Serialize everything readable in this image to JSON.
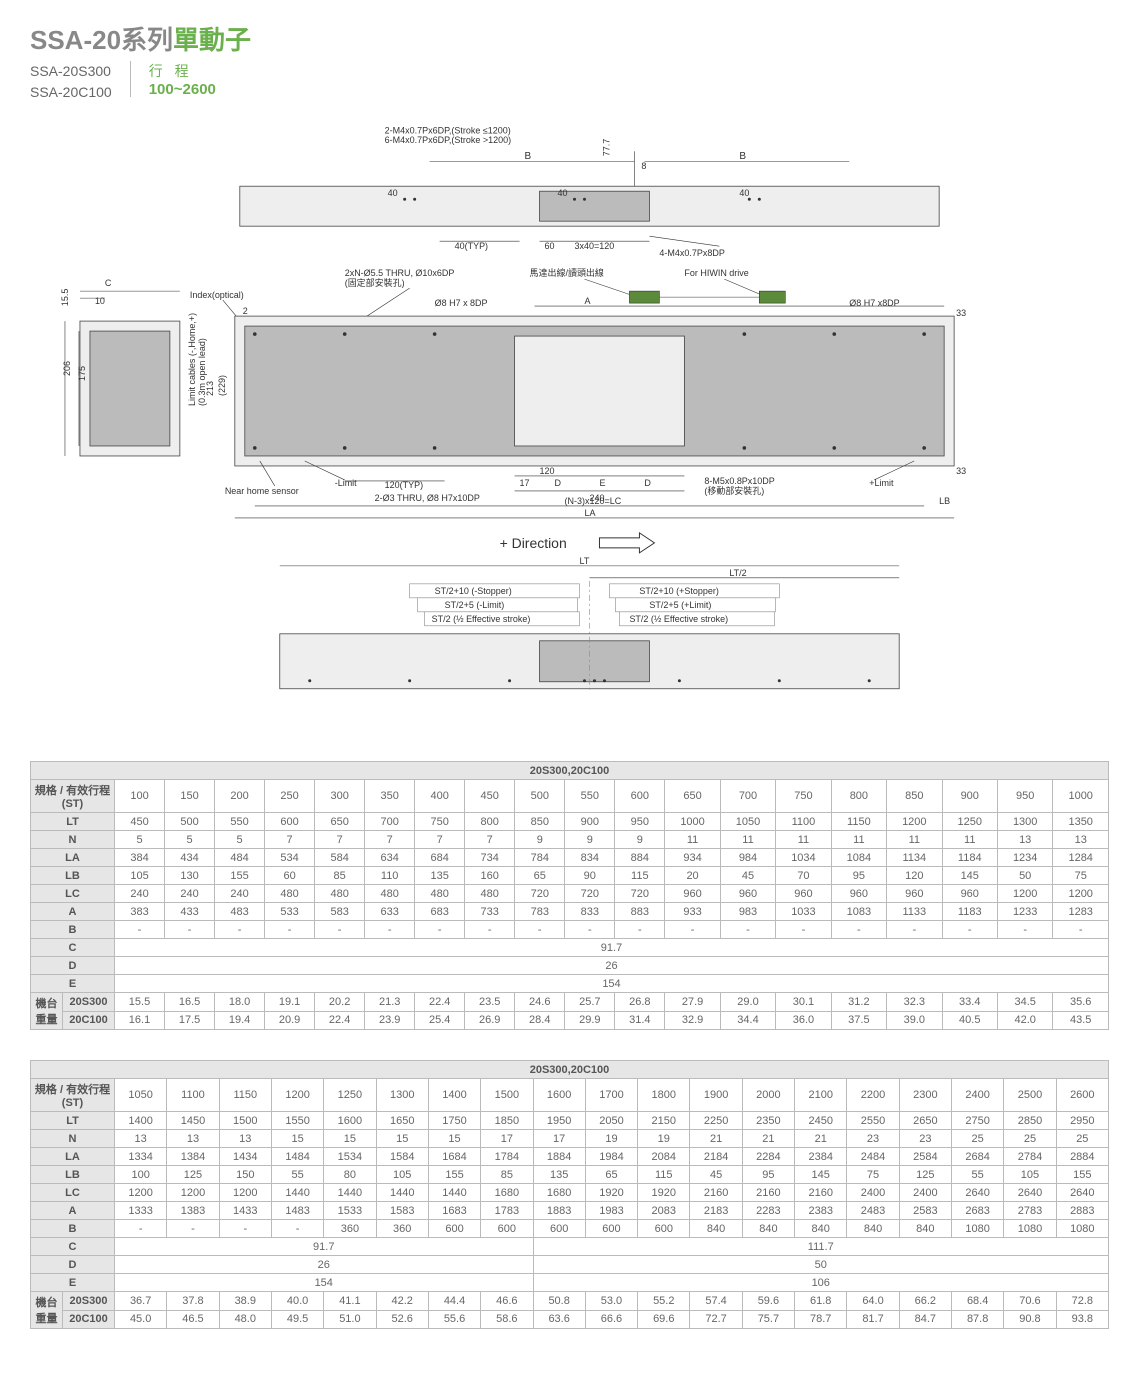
{
  "header": {
    "title_prefix": "SSA-20系列",
    "title_suffix": "單動子",
    "models": [
      "SSA-20S300",
      "SSA-20C100"
    ],
    "stroke_label": "行 程",
    "stroke_range": "100~2600"
  },
  "diagram": {
    "notes": {
      "top_thread": "2-M4x0.7Px6DP,(Stroke ≤1200)\n6-M4x0.7Px6DP,(Stroke >1200)",
      "typ40": "40(TYP)",
      "slot40": "40",
      "slot60": "60",
      "slot3x40": "3x40=120",
      "m4_bottom": "4-M4x0.7Px8DP",
      "motor_out": "馬達出線/讀頭出線",
      "for_hiwin": "For HIWIN drive",
      "thru": "2xN-Ø5.5 THRU, Ø10x6DP",
      "thru_sub": "(固定部安裝孔)",
      "d8h7": "Ø8 H7 x 8DP",
      "d8h7_r": "Ø8 H7 x8DP",
      "index": "Index(optical)",
      "limit_cables": "Limit cables (-,Home,+)\n(0.3m open lead)",
      "near_home": "Near home sensor",
      "nlimit": "-Limit",
      "plimit": "+Limit",
      "typ120": "120(TYP)",
      "thru2": "2-Ø3 THRU, Ø8 H7x10DP",
      "m5": "8-M5x0.8Px10DP",
      "m5_sub": "(移動部安裝孔)",
      "n3x120": "(N-3)x120=LC",
      "direction": "+ Direction",
      "st_stopper_n": "ST/2+10 (-Stopper)",
      "st_stopper_p": "ST/2+10 (+Stopper)",
      "st_limit_n": "ST/2+5 (-Limit)",
      "st_limit_p": "ST/2+5 (+Limit)",
      "st_eff_n": "ST/2 (½ Effective stroke)",
      "st_eff_p": "ST/2 (½ Effective stroke)"
    },
    "dims": {
      "B": "B",
      "A": "A",
      "C": "C",
      "D": "D",
      "E": "E",
      "LA": "LA",
      "LB": "LB",
      "LT": "LT",
      "LT2": "LT/2",
      "d10": "10",
      "d2": "2",
      "d206": "206",
      "d175": "175",
      "d229": "(229)",
      "d213": "213",
      "d155": "15.5",
      "d77": "77.7",
      "d8": "8",
      "d17": "17",
      "d33": "33",
      "d120": "120",
      "d240": "240"
    }
  },
  "table1": {
    "title": "20S300,20C100",
    "spec_header": "規格 / 有效行程 (ST)",
    "strokes": [
      "100",
      "150",
      "200",
      "250",
      "300",
      "350",
      "400",
      "450",
      "500",
      "550",
      "600",
      "650",
      "700",
      "750",
      "800",
      "850",
      "900",
      "950",
      "1000"
    ],
    "rows": [
      {
        "label": "LT",
        "v": [
          "450",
          "500",
          "550",
          "600",
          "650",
          "700",
          "750",
          "800",
          "850",
          "900",
          "950",
          "1000",
          "1050",
          "1100",
          "1150",
          "1200",
          "1250",
          "1300",
          "1350"
        ]
      },
      {
        "label": "N",
        "v": [
          "5",
          "5",
          "5",
          "7",
          "7",
          "7",
          "7",
          "7",
          "9",
          "9",
          "9",
          "11",
          "11",
          "11",
          "11",
          "11",
          "11",
          "13",
          "13"
        ]
      },
      {
        "label": "LA",
        "v": [
          "384",
          "434",
          "484",
          "534",
          "584",
          "634",
          "684",
          "734",
          "784",
          "834",
          "884",
          "934",
          "984",
          "1034",
          "1084",
          "1134",
          "1184",
          "1234",
          "1284"
        ]
      },
      {
        "label": "LB",
        "v": [
          "105",
          "130",
          "155",
          "60",
          "85",
          "110",
          "135",
          "160",
          "65",
          "90",
          "115",
          "20",
          "45",
          "70",
          "95",
          "120",
          "145",
          "50",
          "75"
        ]
      },
      {
        "label": "LC",
        "v": [
          "240",
          "240",
          "240",
          "480",
          "480",
          "480",
          "480",
          "480",
          "720",
          "720",
          "720",
          "960",
          "960",
          "960",
          "960",
          "960",
          "960",
          "1200",
          "1200"
        ]
      },
      {
        "label": "A",
        "v": [
          "383",
          "433",
          "483",
          "533",
          "583",
          "633",
          "683",
          "733",
          "783",
          "833",
          "883",
          "933",
          "983",
          "1033",
          "1083",
          "1133",
          "1183",
          "1233",
          "1283"
        ]
      },
      {
        "label": "B",
        "v": [
          "-",
          "-",
          "-",
          "-",
          "-",
          "-",
          "-",
          "-",
          "-",
          "-",
          "-",
          "-",
          "-",
          "-",
          "-",
          "-",
          "-",
          "-",
          "-"
        ]
      },
      {
        "label": "C",
        "span": "91.7"
      },
      {
        "label": "D",
        "span": "26"
      },
      {
        "label": "E",
        "span": "154"
      }
    ],
    "weight_group_label": "機台\n重量",
    "weight_rows": [
      {
        "label": "20S300",
        "v": [
          "15.5",
          "16.5",
          "18.0",
          "19.1",
          "20.2",
          "21.3",
          "22.4",
          "23.5",
          "24.6",
          "25.7",
          "26.8",
          "27.9",
          "29.0",
          "30.1",
          "31.2",
          "32.3",
          "33.4",
          "34.5",
          "35.6"
        ]
      },
      {
        "label": "20C100",
        "v": [
          "16.1",
          "17.5",
          "19.4",
          "20.9",
          "22.4",
          "23.9",
          "25.4",
          "26.9",
          "28.4",
          "29.9",
          "31.4",
          "32.9",
          "34.4",
          "36.0",
          "37.5",
          "39.0",
          "40.5",
          "42.0",
          "43.5"
        ]
      }
    ]
  },
  "table2": {
    "title": "20S300,20C100",
    "spec_header": "規格 / 有效行程 (ST)",
    "strokes": [
      "1050",
      "1100",
      "1150",
      "1200",
      "1250",
      "1300",
      "1400",
      "1500",
      "1600",
      "1700",
      "1800",
      "1900",
      "2000",
      "2100",
      "2200",
      "2300",
      "2400",
      "2500",
      "2600"
    ],
    "rows": [
      {
        "label": "LT",
        "v": [
          "1400",
          "1450",
          "1500",
          "1550",
          "1600",
          "1650",
          "1750",
          "1850",
          "1950",
          "2050",
          "2150",
          "2250",
          "2350",
          "2450",
          "2550",
          "2650",
          "2750",
          "2850",
          "2950"
        ]
      },
      {
        "label": "N",
        "v": [
          "13",
          "13",
          "13",
          "15",
          "15",
          "15",
          "15",
          "17",
          "17",
          "19",
          "19",
          "21",
          "21",
          "21",
          "23",
          "23",
          "25",
          "25",
          "25"
        ]
      },
      {
        "label": "LA",
        "v": [
          "1334",
          "1384",
          "1434",
          "1484",
          "1534",
          "1584",
          "1684",
          "1784",
          "1884",
          "1984",
          "2084",
          "2184",
          "2284",
          "2384",
          "2484",
          "2584",
          "2684",
          "2784",
          "2884"
        ]
      },
      {
        "label": "LB",
        "v": [
          "100",
          "125",
          "150",
          "55",
          "80",
          "105",
          "155",
          "85",
          "135",
          "65",
          "115",
          "45",
          "95",
          "145",
          "75",
          "125",
          "55",
          "105",
          "155"
        ]
      },
      {
        "label": "LC",
        "v": [
          "1200",
          "1200",
          "1200",
          "1440",
          "1440",
          "1440",
          "1440",
          "1680",
          "1680",
          "1920",
          "1920",
          "2160",
          "2160",
          "2160",
          "2400",
          "2400",
          "2640",
          "2640",
          "2640"
        ]
      },
      {
        "label": "A",
        "v": [
          "1333",
          "1383",
          "1433",
          "1483",
          "1533",
          "1583",
          "1683",
          "1783",
          "1883",
          "1983",
          "2083",
          "2183",
          "2283",
          "2383",
          "2483",
          "2583",
          "2683",
          "2783",
          "2883"
        ]
      },
      {
        "label": "B",
        "v": [
          "-",
          "-",
          "-",
          "-",
          "360",
          "360",
          "600",
          "600",
          "600",
          "600",
          "600",
          "840",
          "840",
          "840",
          "840",
          "840",
          "1080",
          "1080",
          "1080"
        ]
      },
      {
        "label": "C",
        "spans": [
          {
            "cols": 8,
            "val": "91.7"
          },
          {
            "cols": 11,
            "val": "111.7"
          }
        ]
      },
      {
        "label": "D",
        "spans": [
          {
            "cols": 8,
            "val": "26"
          },
          {
            "cols": 11,
            "val": "50"
          }
        ]
      },
      {
        "label": "E",
        "spans": [
          {
            "cols": 8,
            "val": "154"
          },
          {
            "cols": 11,
            "val": "106"
          }
        ]
      }
    ],
    "weight_group_label": "機台\n重量",
    "weight_rows": [
      {
        "label": "20S300",
        "v": [
          "36.7",
          "37.8",
          "38.9",
          "40.0",
          "41.1",
          "42.2",
          "44.4",
          "46.6",
          "50.8",
          "53.0",
          "55.2",
          "57.4",
          "59.6",
          "61.8",
          "64.0",
          "66.2",
          "68.4",
          "70.6",
          "72.8"
        ]
      },
      {
        "label": "20C100",
        "v": [
          "45.0",
          "46.5",
          "48.0",
          "49.5",
          "51.0",
          "52.6",
          "55.6",
          "58.6",
          "63.6",
          "66.6",
          "69.6",
          "72.7",
          "75.7",
          "78.7",
          "81.7",
          "84.7",
          "87.8",
          "90.8",
          "93.8"
        ]
      }
    ]
  }
}
